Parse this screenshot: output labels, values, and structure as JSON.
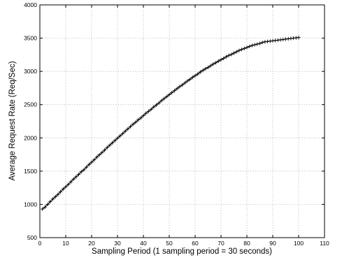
{
  "chart_data": {
    "type": "line",
    "title": "",
    "xlabel": "Sampling Period (1 sampling period = 30 seconds)",
    "ylabel": "Average Request Rate (Req/Sec)",
    "xlim": [
      0,
      110
    ],
    "ylim": [
      500,
      4000
    ],
    "xticks": [
      0,
      10,
      20,
      30,
      40,
      50,
      60,
      70,
      80,
      90,
      100,
      110
    ],
    "yticks": [
      500,
      1000,
      1500,
      2000,
      2500,
      3000,
      3500,
      4000
    ],
    "xtick_labels": [
      "0",
      "10",
      "20",
      "30",
      "40",
      "50",
      "60",
      "70",
      "80",
      "90",
      "100",
      "110"
    ],
    "ytick_labels": [
      "500",
      "1000",
      "1500",
      "2000",
      "2500",
      "3000",
      "3500",
      "4000"
    ],
    "grid": true,
    "marker": "plus",
    "line_color": "#000000",
    "series": [
      {
        "x": [
          1,
          2,
          3,
          4,
          5,
          6,
          7,
          8,
          9,
          10,
          11,
          12,
          13,
          14,
          15,
          16,
          17,
          18,
          19,
          20,
          21,
          22,
          23,
          24,
          25,
          26,
          27,
          28,
          29,
          30,
          31,
          32,
          33,
          34,
          35,
          36,
          37,
          38,
          39,
          40,
          41,
          42,
          43,
          44,
          45,
          46,
          47,
          48,
          49,
          50,
          51,
          52,
          53,
          54,
          55,
          56,
          57,
          58,
          59,
          60,
          61,
          62,
          63,
          64,
          65,
          66,
          67,
          68,
          69,
          70,
          71,
          72,
          73,
          74,
          75,
          76,
          77,
          78,
          79,
          80,
          81,
          82,
          83,
          84,
          85,
          86,
          87,
          88,
          89,
          90,
          91,
          92,
          93,
          94,
          95,
          96,
          97,
          98,
          99,
          100
        ],
        "values": [
          930,
          960,
          1000,
          1040,
          1080,
          1115,
          1150,
          1190,
          1230,
          1265,
          1300,
          1340,
          1380,
          1415,
          1450,
          1490,
          1520,
          1560,
          1600,
          1635,
          1670,
          1710,
          1745,
          1780,
          1815,
          1855,
          1890,
          1925,
          1960,
          1995,
          2030,
          2065,
          2100,
          2135,
          2170,
          2205,
          2235,
          2270,
          2300,
          2335,
          2370,
          2400,
          2430,
          2465,
          2495,
          2525,
          2560,
          2590,
          2620,
          2650,
          2680,
          2710,
          2740,
          2770,
          2795,
          2825,
          2855,
          2880,
          2910,
          2935,
          2960,
          2990,
          3015,
          3040,
          3060,
          3085,
          3110,
          3130,
          3155,
          3175,
          3195,
          3220,
          3240,
          3255,
          3275,
          3295,
          3315,
          3330,
          3345,
          3360,
          3375,
          3390,
          3400,
          3410,
          3420,
          3435,
          3445,
          3450,
          3455,
          3460,
          3465,
          3470,
          3475,
          3480,
          3485,
          3490,
          3495,
          3500,
          3505,
          3510
        ]
      }
    ]
  }
}
